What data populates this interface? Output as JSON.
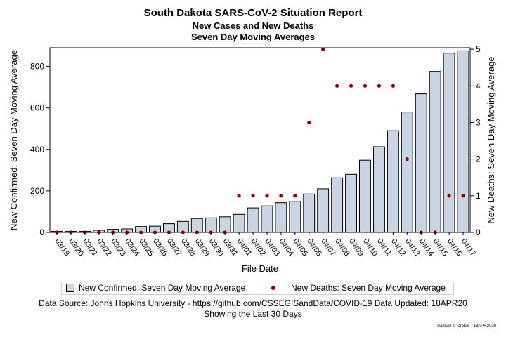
{
  "header": {
    "title": "South Dakota SARS-CoV-2 Situation Report",
    "subtitle1": "New Cases and New Deaths",
    "subtitle2": "Seven Day Moving Averages"
  },
  "legend": {
    "cases": "New Confirmed: Seven Day Moving Average",
    "deaths": "New Deaths: Seven Day Moving Average"
  },
  "footer": {
    "source": "Data Source: Johns Hopkins University - https://github.com/CSSEGISandData/COVID-19 Data Updated: 18APR20",
    "range": "Showing the Last 30 Days",
    "credit": "Samuel T. Croker - 18APR2020"
  },
  "colors": {
    "bar_fill": "#c9d4e4",
    "bar_stroke": "#000000",
    "dot": "#8b0000"
  },
  "chart_data": {
    "type": "bar",
    "title": "South Dakota SARS-CoV-2 Situation Report",
    "xlabel": "File Date",
    "ylabel": "New Confirmed: Seven Day Moving Average",
    "y2label": "New Deaths: Seven Day Moving Average",
    "ylim": [
      0,
      890
    ],
    "y2lim": [
      0,
      5.04
    ],
    "yticks": [
      0,
      200,
      400,
      600,
      800
    ],
    "y2ticks": [
      0,
      1,
      2,
      3,
      4,
      5
    ],
    "grid": false,
    "legend_position": "bottom",
    "categories": [
      "03/19",
      "03/20",
      "03/21",
      "03/22",
      "03/23",
      "03/24",
      "03/25",
      "03/26",
      "03/27",
      "03/28",
      "03/29",
      "03/30",
      "03/31",
      "04/01",
      "04/02",
      "04/03",
      "04/04",
      "04/05",
      "04/06",
      "04/07",
      "04/08",
      "04/09",
      "04/10",
      "04/11",
      "04/12",
      "04/13",
      "04/14",
      "04/15",
      "04/16",
      "04/17"
    ],
    "series": [
      {
        "name": "New Confirmed: Seven Day Moving Average",
        "type": "bar",
        "axis": "left",
        "values": [
          5,
          5,
          5,
          10,
          15,
          17,
          28,
          30,
          42,
          53,
          67,
          70,
          75,
          87,
          118,
          128,
          143,
          150,
          185,
          210,
          263,
          280,
          348,
          413,
          490,
          580,
          668,
          776,
          864,
          875
        ]
      },
      {
        "name": "New Deaths: Seven Day Moving Average",
        "type": "scatter",
        "axis": "right",
        "values": [
          0,
          0,
          0,
          0,
          0,
          0,
          0,
          0,
          0,
          0,
          0,
          0,
          0,
          1,
          1,
          1,
          1,
          1,
          3,
          5,
          4,
          4,
          4,
          4,
          4,
          2,
          0,
          0,
          1,
          1
        ]
      }
    ]
  }
}
